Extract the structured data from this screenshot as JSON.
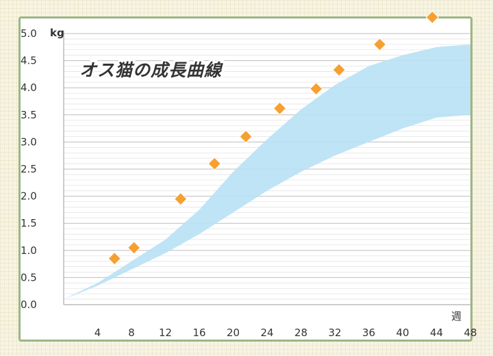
{
  "chart_data": {
    "type": "area",
    "title": "オス猫の成長曲線",
    "xlabel": "週",
    "ylabel": "kg",
    "xlim": [
      0,
      48
    ],
    "ylim": [
      0,
      5.0
    ],
    "x_ticks": [
      4,
      8,
      12,
      16,
      20,
      24,
      28,
      32,
      36,
      40,
      44,
      48
    ],
    "y_ticks": [
      0.0,
      0.5,
      1.0,
      1.5,
      2.0,
      2.5,
      3.0,
      3.5,
      4.0,
      4.5,
      5.0
    ],
    "y_tick_labels": [
      "0.0",
      "0.5",
      "1.0",
      "1.5",
      "2.0",
      "2.5",
      "3.0",
      "3.5",
      "4.0",
      "4.5",
      "5.0"
    ],
    "grid": true,
    "band": {
      "color": "#b8e1f5",
      "x": [
        0,
        4,
        8,
        12,
        16,
        20,
        24,
        28,
        32,
        36,
        40,
        44,
        48
      ],
      "lower": [
        0.1,
        0.35,
        0.65,
        0.95,
        1.3,
        1.7,
        2.1,
        2.45,
        2.75,
        3.0,
        3.25,
        3.45,
        3.5
      ],
      "upper": [
        0.1,
        0.4,
        0.8,
        1.2,
        1.75,
        2.45,
        3.05,
        3.6,
        4.05,
        4.4,
        4.6,
        4.75,
        4.8
      ]
    },
    "series": [
      {
        "marker": "diamond",
        "color": "#f5a030",
        "x": [
          6,
          8.3,
          13.8,
          17.8,
          21.5,
          25.5,
          29.8,
          32.5,
          37.3,
          43.5
        ],
        "values": [
          0.85,
          1.05,
          1.95,
          2.6,
          3.1,
          3.62,
          3.98,
          4.33,
          4.8,
          5.3
        ]
      }
    ]
  }
}
